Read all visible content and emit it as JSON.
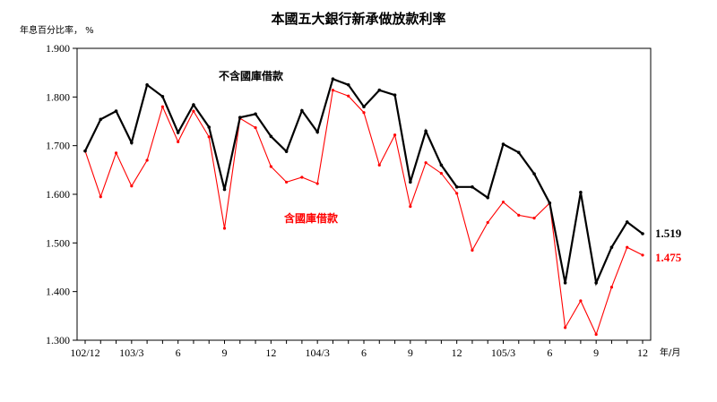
{
  "chart_data": {
    "type": "line",
    "title": "本國五大銀行新承做放款利率",
    "ylabel": "年息百分比率， %",
    "xunit": "年/月",
    "ylim": [
      1.3,
      1.9
    ],
    "yticks": [
      "1.300",
      "1.400",
      "1.500",
      "1.600",
      "1.700",
      "1.800",
      "1.900"
    ],
    "xtick_labels": [
      {
        "i": 0,
        "label": "102/12"
      },
      {
        "i": 3,
        "label": "103/3"
      },
      {
        "i": 6,
        "label": "6"
      },
      {
        "i": 9,
        "label": "9"
      },
      {
        "i": 12,
        "label": "12"
      },
      {
        "i": 15,
        "label": "104/3"
      },
      {
        "i": 18,
        "label": "6"
      },
      {
        "i": 21,
        "label": "9"
      },
      {
        "i": 24,
        "label": "12"
      },
      {
        "i": 27,
        "label": "105/3"
      },
      {
        "i": 30,
        "label": "6"
      },
      {
        "i": 33,
        "label": "9"
      },
      {
        "i": 36,
        "label": "12"
      }
    ],
    "series": [
      {
        "name": "不含國庫借款",
        "color": "#000000",
        "end_label": "1.519",
        "values": [
          1.689,
          1.754,
          1.771,
          1.706,
          1.825,
          1.801,
          1.727,
          1.784,
          1.738,
          1.61,
          1.758,
          1.765,
          1.719,
          1.688,
          1.772,
          1.728,
          1.837,
          1.825,
          1.78,
          1.814,
          1.804,
          1.625,
          1.73,
          1.66,
          1.615,
          1.615,
          1.593,
          1.703,
          1.686,
          1.642,
          1.582,
          1.418,
          1.604,
          1.418,
          1.491,
          1.543,
          1.519
        ]
      },
      {
        "name": "含國庫借款",
        "color": "#ff0000",
        "end_label": "1.475",
        "values": [
          1.689,
          1.595,
          1.685,
          1.617,
          1.67,
          1.78,
          1.708,
          1.771,
          1.718,
          1.53,
          1.756,
          1.737,
          1.657,
          1.625,
          1.635,
          1.622,
          1.814,
          1.802,
          1.768,
          1.66,
          1.722,
          1.575,
          1.665,
          1.643,
          1.602,
          1.485,
          1.542,
          1.584,
          1.557,
          1.551,
          1.582,
          1.326,
          1.381,
          1.312,
          1.409,
          1.491,
          1.475
        ]
      }
    ]
  }
}
